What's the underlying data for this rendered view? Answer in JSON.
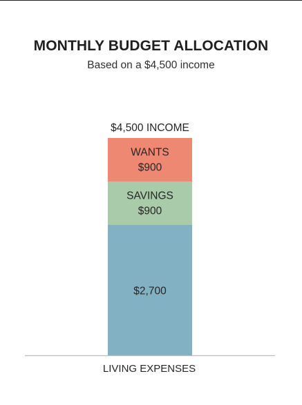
{
  "chart_data": {
    "type": "bar",
    "stacked": true,
    "title": "MONTHLY BUDGET ALLOCATION",
    "subtitle": "Based on a $4,500 income",
    "total": 4500,
    "total_label": "$4,500 INCOME",
    "category_label": "LIVING EXPENSES",
    "ylim": [
      0,
      4500
    ],
    "grid": false,
    "legend": "none",
    "segments": [
      {
        "name": "",
        "value": 2700,
        "value_label": "$2,700",
        "color": "#82b1c4"
      },
      {
        "name": "SAVINGS",
        "value": 900,
        "value_label": "$900",
        "color": "#a9cba9"
      },
      {
        "name": "WANTS",
        "value": 900,
        "value_label": "$900",
        "color": "#ef8873"
      }
    ]
  }
}
